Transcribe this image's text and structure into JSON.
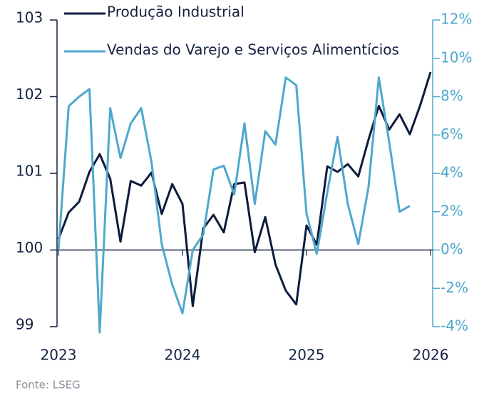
{
  "chart_data": {
    "type": "line",
    "note": "Fonte: LSEG",
    "x": [
      2023,
      2023.083,
      2023.167,
      2023.25,
      2023.333,
      2023.417,
      2023.5,
      2023.583,
      2023.667,
      2023.75,
      2023.833,
      2023.917,
      2024,
      2024.083,
      2024.167,
      2024.25,
      2024.333,
      2024.417,
      2024.5,
      2024.583,
      2024.667,
      2024.75,
      2024.833,
      2024.917,
      2025,
      2025.083,
      2025.167,
      2025.25,
      2025.333,
      2025.417,
      2025.5,
      2025.583,
      2025.667,
      2025.75,
      2025.833,
      2025.917,
      2026
    ],
    "series": [
      {
        "name": "Produção Industrial",
        "color": "#0d1b3e",
        "values": [
          100.14,
          100.49,
          100.63,
          101.02,
          101.25,
          100.93,
          100.11,
          100.9,
          100.84,
          101.01,
          100.47,
          100.86,
          100.6,
          99.27,
          100.28,
          100.46,
          100.23,
          100.86,
          100.88,
          99.97,
          100.43,
          99.81,
          99.47,
          99.29,
          100.32,
          100.07,
          101.09,
          101.02,
          101.12,
          100.96,
          101.44,
          101.88,
          101.57,
          101.77,
          101.51,
          101.89,
          102.32
        ]
      },
      {
        "name": "Vendas do Varejo e Serviços Alimentícios",
        "color": "#4fa8cc",
        "axis": "y2",
        "values": [
          0,
          7.5,
          8.0,
          8.4,
          -4.3,
          7.4,
          4.8,
          6.6,
          7.4,
          4.6,
          0.3,
          -1.8,
          -3.3,
          0,
          0.8,
          4.2,
          4.4,
          2.9,
          6.6,
          2.4,
          6.2,
          5.5,
          9.0,
          8.6,
          1.9,
          -0.2,
          3.0,
          5.9,
          2.4,
          0.3,
          3.3,
          9.0,
          5.6,
          2.0,
          2.3,
          null,
          null
        ]
      }
    ],
    "xlim": [
      2023,
      2026
    ],
    "xticks": [
      2023,
      2024,
      2025,
      2026
    ],
    "ylim": [
      99,
      103
    ],
    "yticks": [
      99,
      100,
      101,
      102,
      103
    ],
    "y2lim": [
      -4,
      12
    ],
    "y2ticks": [
      {
        "value": -4,
        "label": "-4%"
      },
      {
        "value": -2,
        "label": "-2%"
      },
      {
        "value": 0,
        "label": "0%"
      },
      {
        "value": 2,
        "label": "2%"
      },
      {
        "value": 4,
        "label": "4%"
      },
      {
        "value": 6,
        "label": "6%"
      },
      {
        "value": 8,
        "label": "8%"
      },
      {
        "value": 10,
        "label": "10%"
      },
      {
        "value": 12,
        "label": "12%"
      }
    ]
  }
}
